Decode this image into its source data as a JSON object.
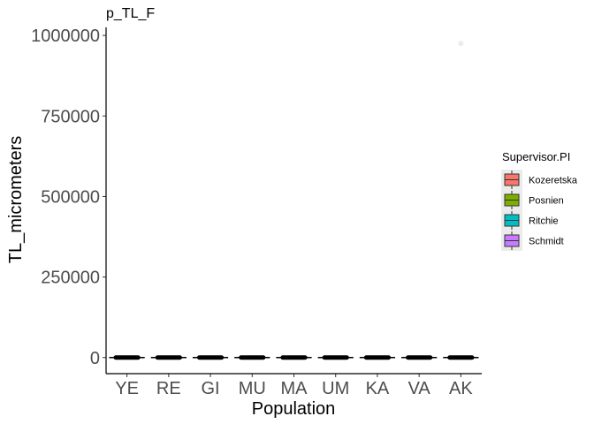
{
  "chart_data": {
    "type": "boxplot",
    "title": "p_TL_F",
    "xlabel": "Population",
    "ylabel": "TL_micrometers",
    "categories": [
      "YE",
      "RE",
      "GI",
      "MU",
      "MA",
      "UM",
      "KA",
      "VA",
      "AK"
    ],
    "ylim": [
      -50000,
      1025000
    ],
    "yticks": [
      0,
      250000,
      500000,
      750000,
      1000000
    ],
    "ytick_labels": [
      "0",
      "250000",
      "500000",
      "750000",
      "1000000"
    ],
    "boxes": [
      {
        "category": "YE",
        "median": 0
      },
      {
        "category": "RE",
        "median": 0
      },
      {
        "category": "GI",
        "median": 0
      },
      {
        "category": "MU",
        "median": 0
      },
      {
        "category": "MA",
        "median": 0
      },
      {
        "category": "UM",
        "median": 0
      },
      {
        "category": "KA",
        "median": 0
      },
      {
        "category": "VA",
        "median": 0
      },
      {
        "category": "AK",
        "median": 0
      }
    ],
    "outliers": [
      {
        "category": "AK",
        "y": 975000
      }
    ],
    "legend": {
      "title": "Supervisor.PI",
      "position": "right",
      "entries": [
        {
          "name": "Kozeretska",
          "color": "#F8766D"
        },
        {
          "name": "Posnien",
          "color": "#7CAE00"
        },
        {
          "name": "Ritchie",
          "color": "#00BFC4"
        },
        {
          "name": "Schmidt",
          "color": "#C77CFF"
        }
      ]
    },
    "grid": false
  }
}
